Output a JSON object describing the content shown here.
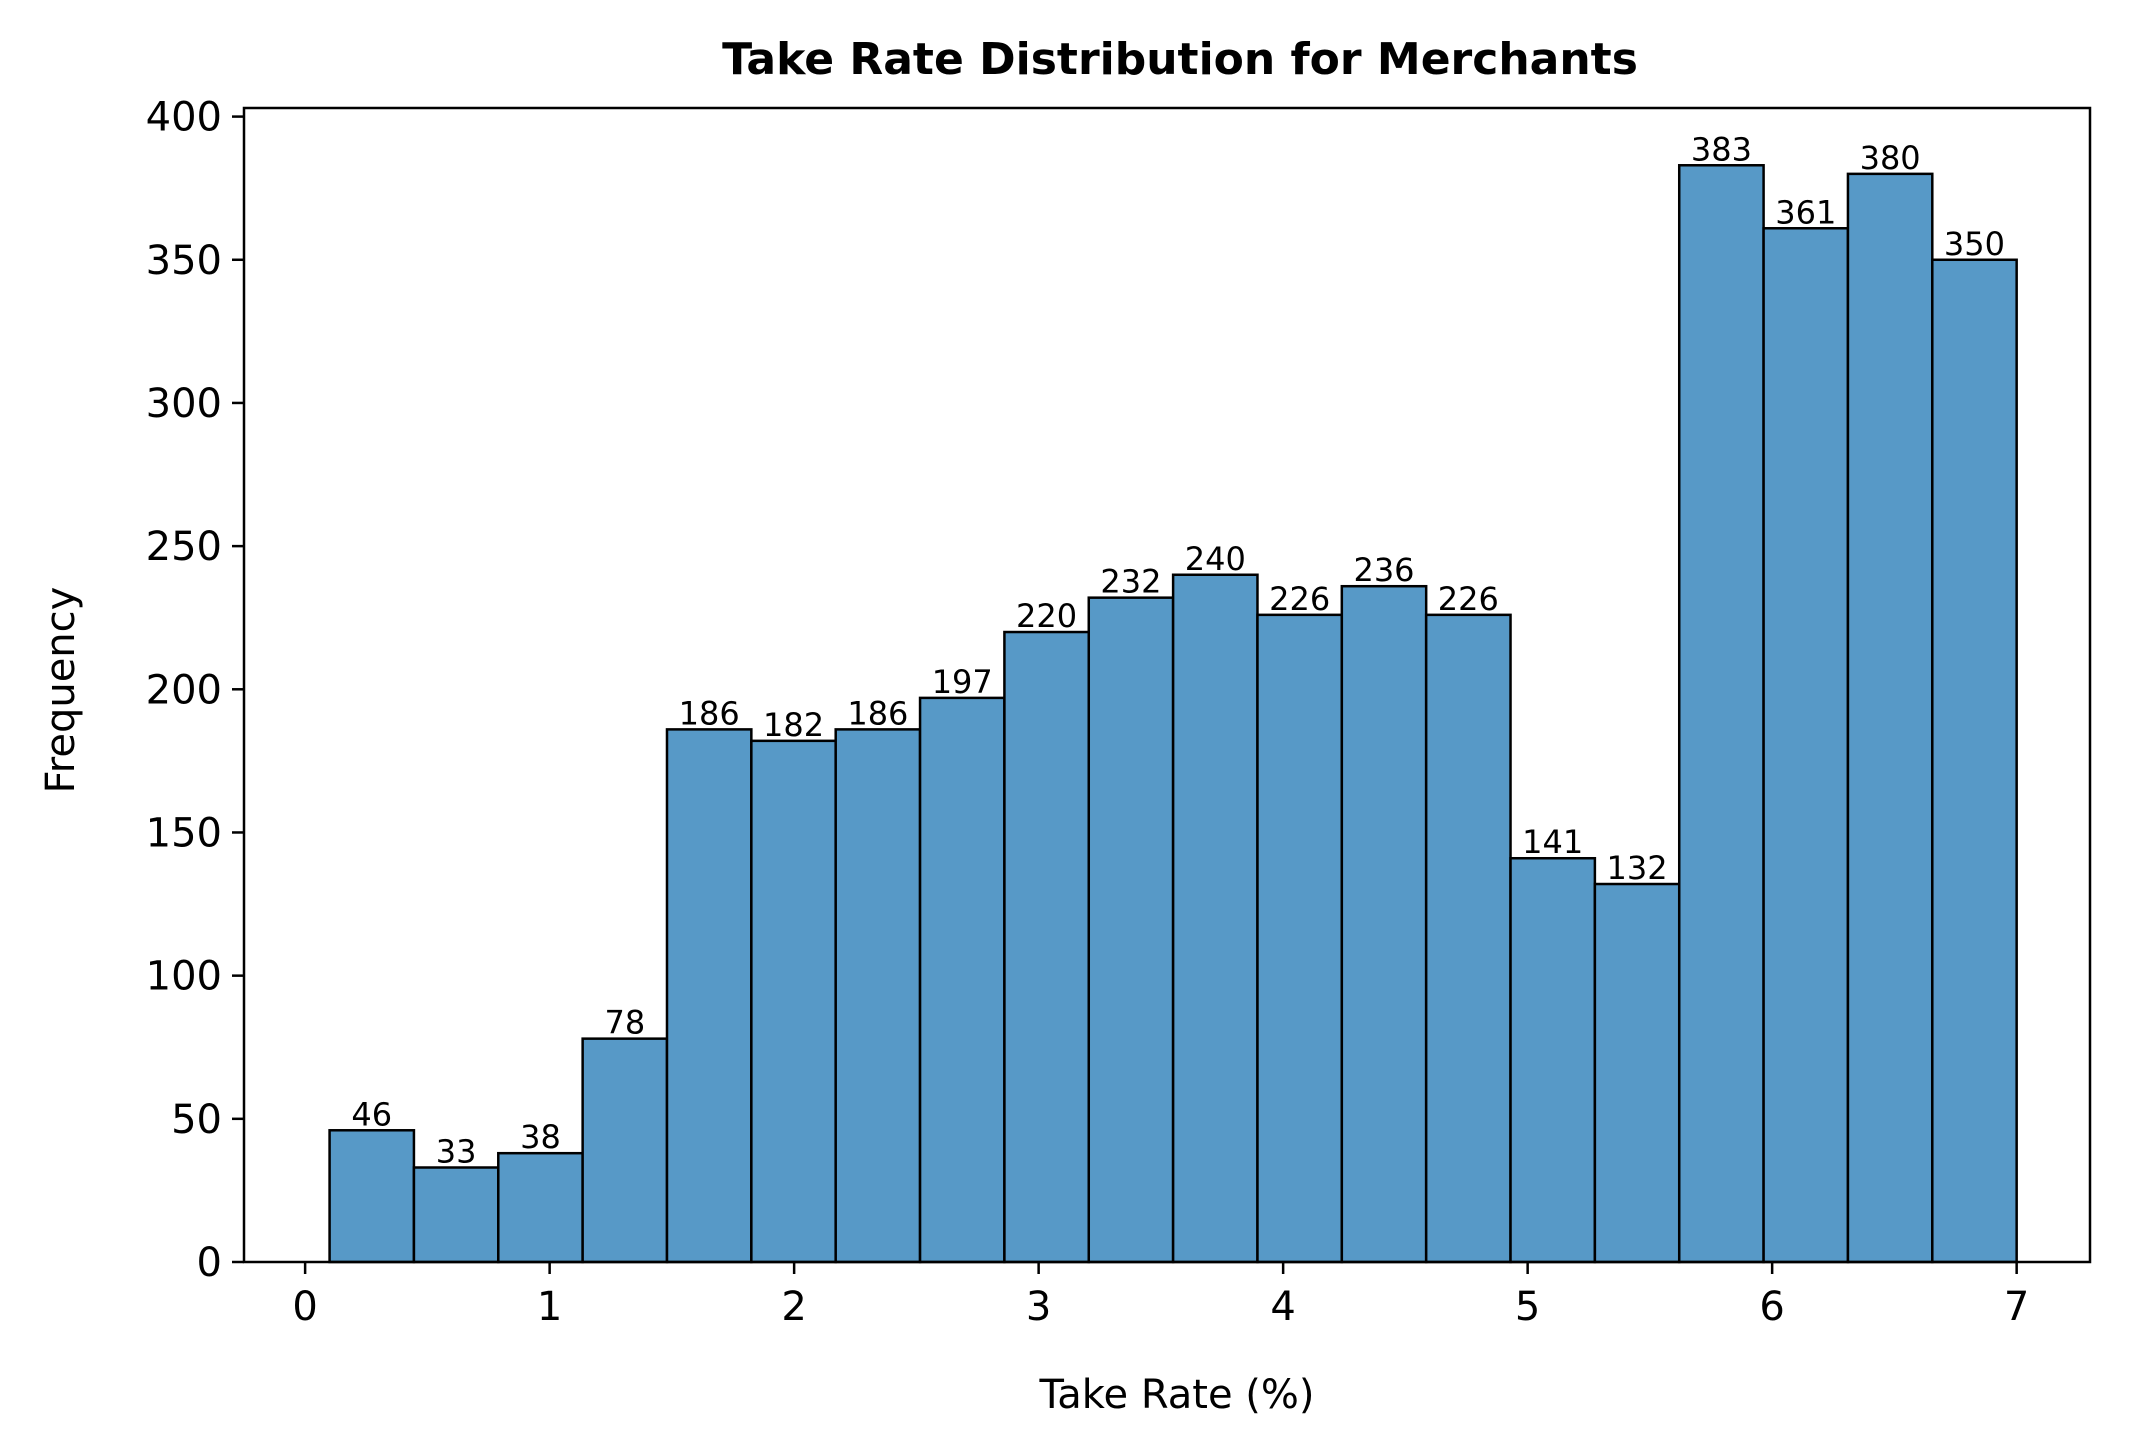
{
  "chart_data": {
    "type": "bar",
    "title": "Take Rate Distribution for Merchants",
    "xlabel": "Take Rate (%)",
    "ylabel": "Frequency",
    "xlim": [
      -0.25,
      7.3
    ],
    "ylim": [
      0,
      403
    ],
    "x_ticks": [
      0,
      1,
      2,
      3,
      4,
      5,
      6,
      7
    ],
    "y_ticks": [
      0,
      50,
      100,
      150,
      200,
      250,
      300,
      350,
      400
    ],
    "bin_start": 0.1,
    "bin_end": 7.0,
    "bins": [
      {
        "value": 46
      },
      {
        "value": 33
      },
      {
        "value": 38
      },
      {
        "value": 78
      },
      {
        "value": 186
      },
      {
        "value": 182
      },
      {
        "value": 186
      },
      {
        "value": 197
      },
      {
        "value": 220
      },
      {
        "value": 232
      },
      {
        "value": 240
      },
      {
        "value": 226
      },
      {
        "value": 236
      },
      {
        "value": 226
      },
      {
        "value": 141
      },
      {
        "value": 132
      },
      {
        "value": 383
      },
      {
        "value": 361
      },
      {
        "value": 380
      },
      {
        "value": 350
      }
    ],
    "bar_color": "#5799c7",
    "edge_color": "#000000",
    "grid": false,
    "legend": "none"
  }
}
